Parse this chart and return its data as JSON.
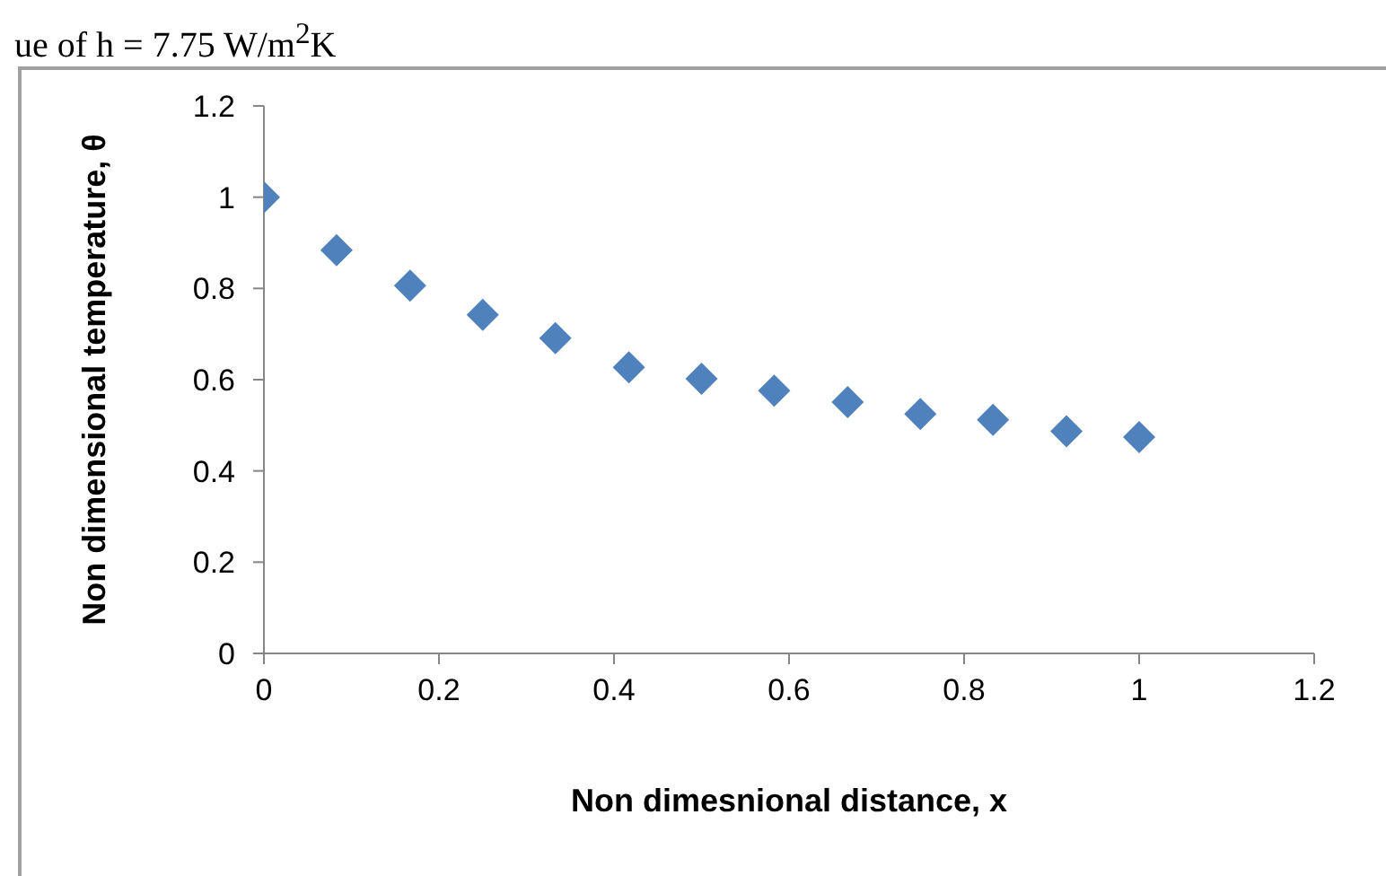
{
  "chart_data": {
    "type": "scatter",
    "annotations": [
      "ue of h = 7.75 W/m$^{2}$K"
    ],
    "xlabel": "Non dimesnional distance, x",
    "ylabel": "Non dimensional temperature, θ",
    "x": [
      0,
      0.083,
      0.167,
      0.25,
      0.333,
      0.417,
      0.5,
      0.583,
      0.667,
      0.75,
      0.833,
      0.917,
      1
    ],
    "series": [
      {
        "color": "#4f81bd",
        "values": [
          1.0,
          0.884,
          0.806,
          0.742,
          0.691,
          0.627,
          0.602,
          0.576,
          0.551,
          0.525,
          0.512,
          0.487,
          0.474
        ]
      }
    ],
    "xlim": [
      0,
      1.2
    ],
    "xticks": [
      0,
      0.2,
      0.4,
      0.6,
      0.8,
      1,
      1.2
    ],
    "ylim": [
      0,
      1.2
    ],
    "yticks": [
      0,
      0.2,
      0.4,
      0.6,
      0.8,
      1,
      1.2
    ],
    "grid": false,
    "legend": false,
    "marker": "diamond"
  }
}
